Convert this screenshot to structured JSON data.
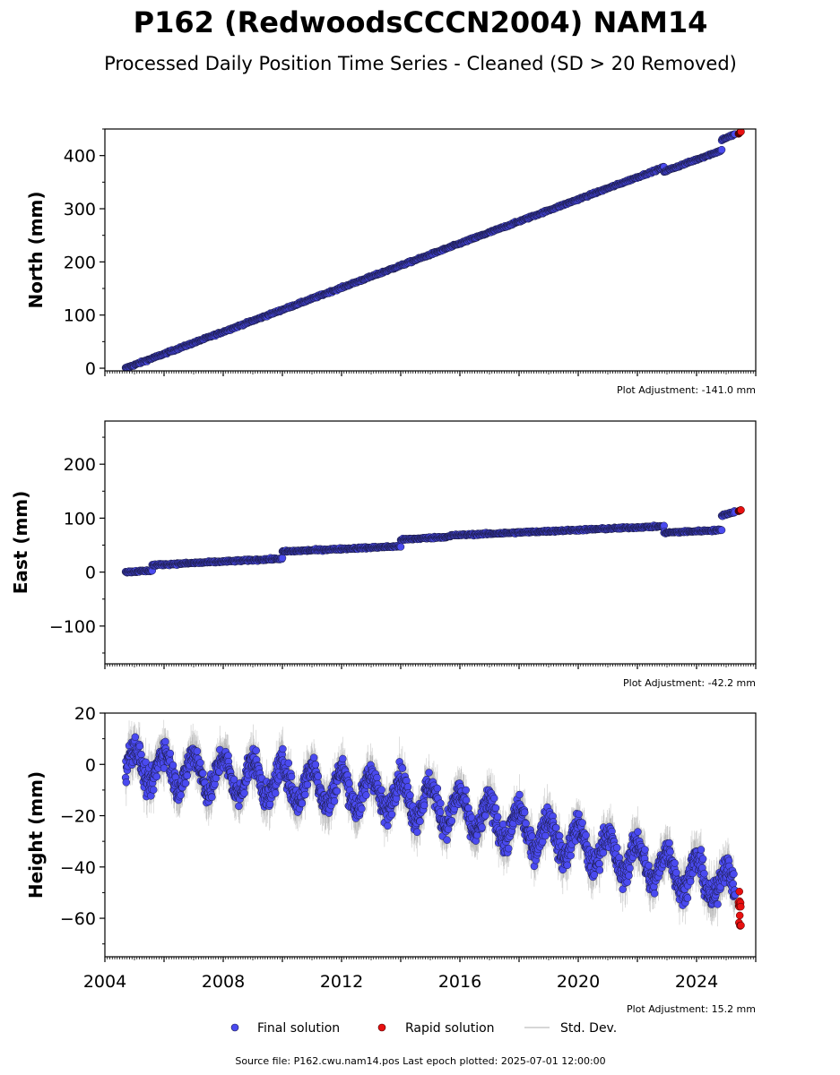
{
  "header": {
    "title": "P162 (RedwoodsCCCN2004) NAM14",
    "subtitle": "Processed Daily Position Time Series - Cleaned (SD > 20 Removed)"
  },
  "legend": {
    "final": "Final solution",
    "rapid": "Rapid solution",
    "std": "Std. Dev."
  },
  "footer": "Source file: P162.cwu.nam14.pos  Last epoch plotted: 2025-07-01 12:00:00",
  "colors": {
    "final": "#4a4af0",
    "final_edge": "#1a1a40",
    "rapid": "#e81010",
    "std": "#8a8a8a"
  },
  "chart_data": [
    {
      "type": "scatter",
      "ylabel": "North (mm)",
      "adjustment": "Plot Adjustment: -141.0 mm",
      "xlim": [
        2004,
        2026
      ],
      "ylim": [
        -5,
        450
      ],
      "yticks": [
        0,
        100,
        200,
        300,
        400
      ],
      "series": [
        {
          "name": "Final solution",
          "segments": [
            {
              "x": [
                2004.7,
                2022.9
              ],
              "y": [
                0,
                378
              ]
            },
            {
              "x": [
                2022.9,
                2024.85
              ],
              "y": [
                370,
                410
              ]
            },
            {
              "x": [
                2024.85,
                2025.3
              ],
              "y": [
                430,
                440
              ]
            }
          ]
        },
        {
          "name": "Rapid solution",
          "x": [
            2025.3,
            2025.5
          ],
          "y": [
            441,
            445
          ]
        }
      ]
    },
    {
      "type": "scatter",
      "ylabel": "East (mm)",
      "adjustment": "Plot Adjustment: -42.2 mm",
      "xlim": [
        2004,
        2026
      ],
      "ylim": [
        -170,
        280
      ],
      "yticks": [
        -100,
        0,
        100,
        200
      ],
      "series": [
        {
          "name": "Final solution",
          "segments": [
            {
              "x": [
                2004.7,
                2005.6
              ],
              "y": [
                0,
                3
              ]
            },
            {
              "x": [
                2005.6,
                2010.0
              ],
              "y": [
                13,
                25
              ]
            },
            {
              "x": [
                2010.0,
                2014.0
              ],
              "y": [
                38,
                48
              ]
            },
            {
              "x": [
                2014.0,
                2015.7
              ],
              "y": [
                60,
                66
              ]
            },
            {
              "x": [
                2015.7,
                2022.9
              ],
              "y": [
                68,
                85
              ]
            },
            {
              "x": [
                2022.9,
                2024.85
              ],
              "y": [
                73,
                78
              ]
            },
            {
              "x": [
                2024.85,
                2025.3
              ],
              "y": [
                105,
                112
              ]
            }
          ]
        },
        {
          "name": "Rapid solution",
          "x": [
            2025.3,
            2025.5
          ],
          "y": [
            113,
            115
          ]
        }
      ]
    },
    {
      "type": "scatter",
      "ylabel": "Height (mm)",
      "adjustment": "Plot Adjustment: 15.2 mm",
      "xlim": [
        2004,
        2026
      ],
      "ylim": [
        -75,
        20
      ],
      "yticks": [
        -60,
        -40,
        -20,
        0,
        20
      ],
      "xticks": [
        2004,
        2008,
        2012,
        2016,
        2020,
        2024
      ],
      "series": [
        {
          "name": "Final solution",
          "trend": {
            "x": [
              2004.7,
              2014.0,
              2025.3
            ],
            "y": [
              0,
              -12,
              -48
            ]
          },
          "seasonal_amplitude": 7
        },
        {
          "name": "Rapid solution",
          "x": [
            2025.3,
            2025.5
          ],
          "y": [
            -48,
            -64
          ]
        }
      ]
    }
  ]
}
